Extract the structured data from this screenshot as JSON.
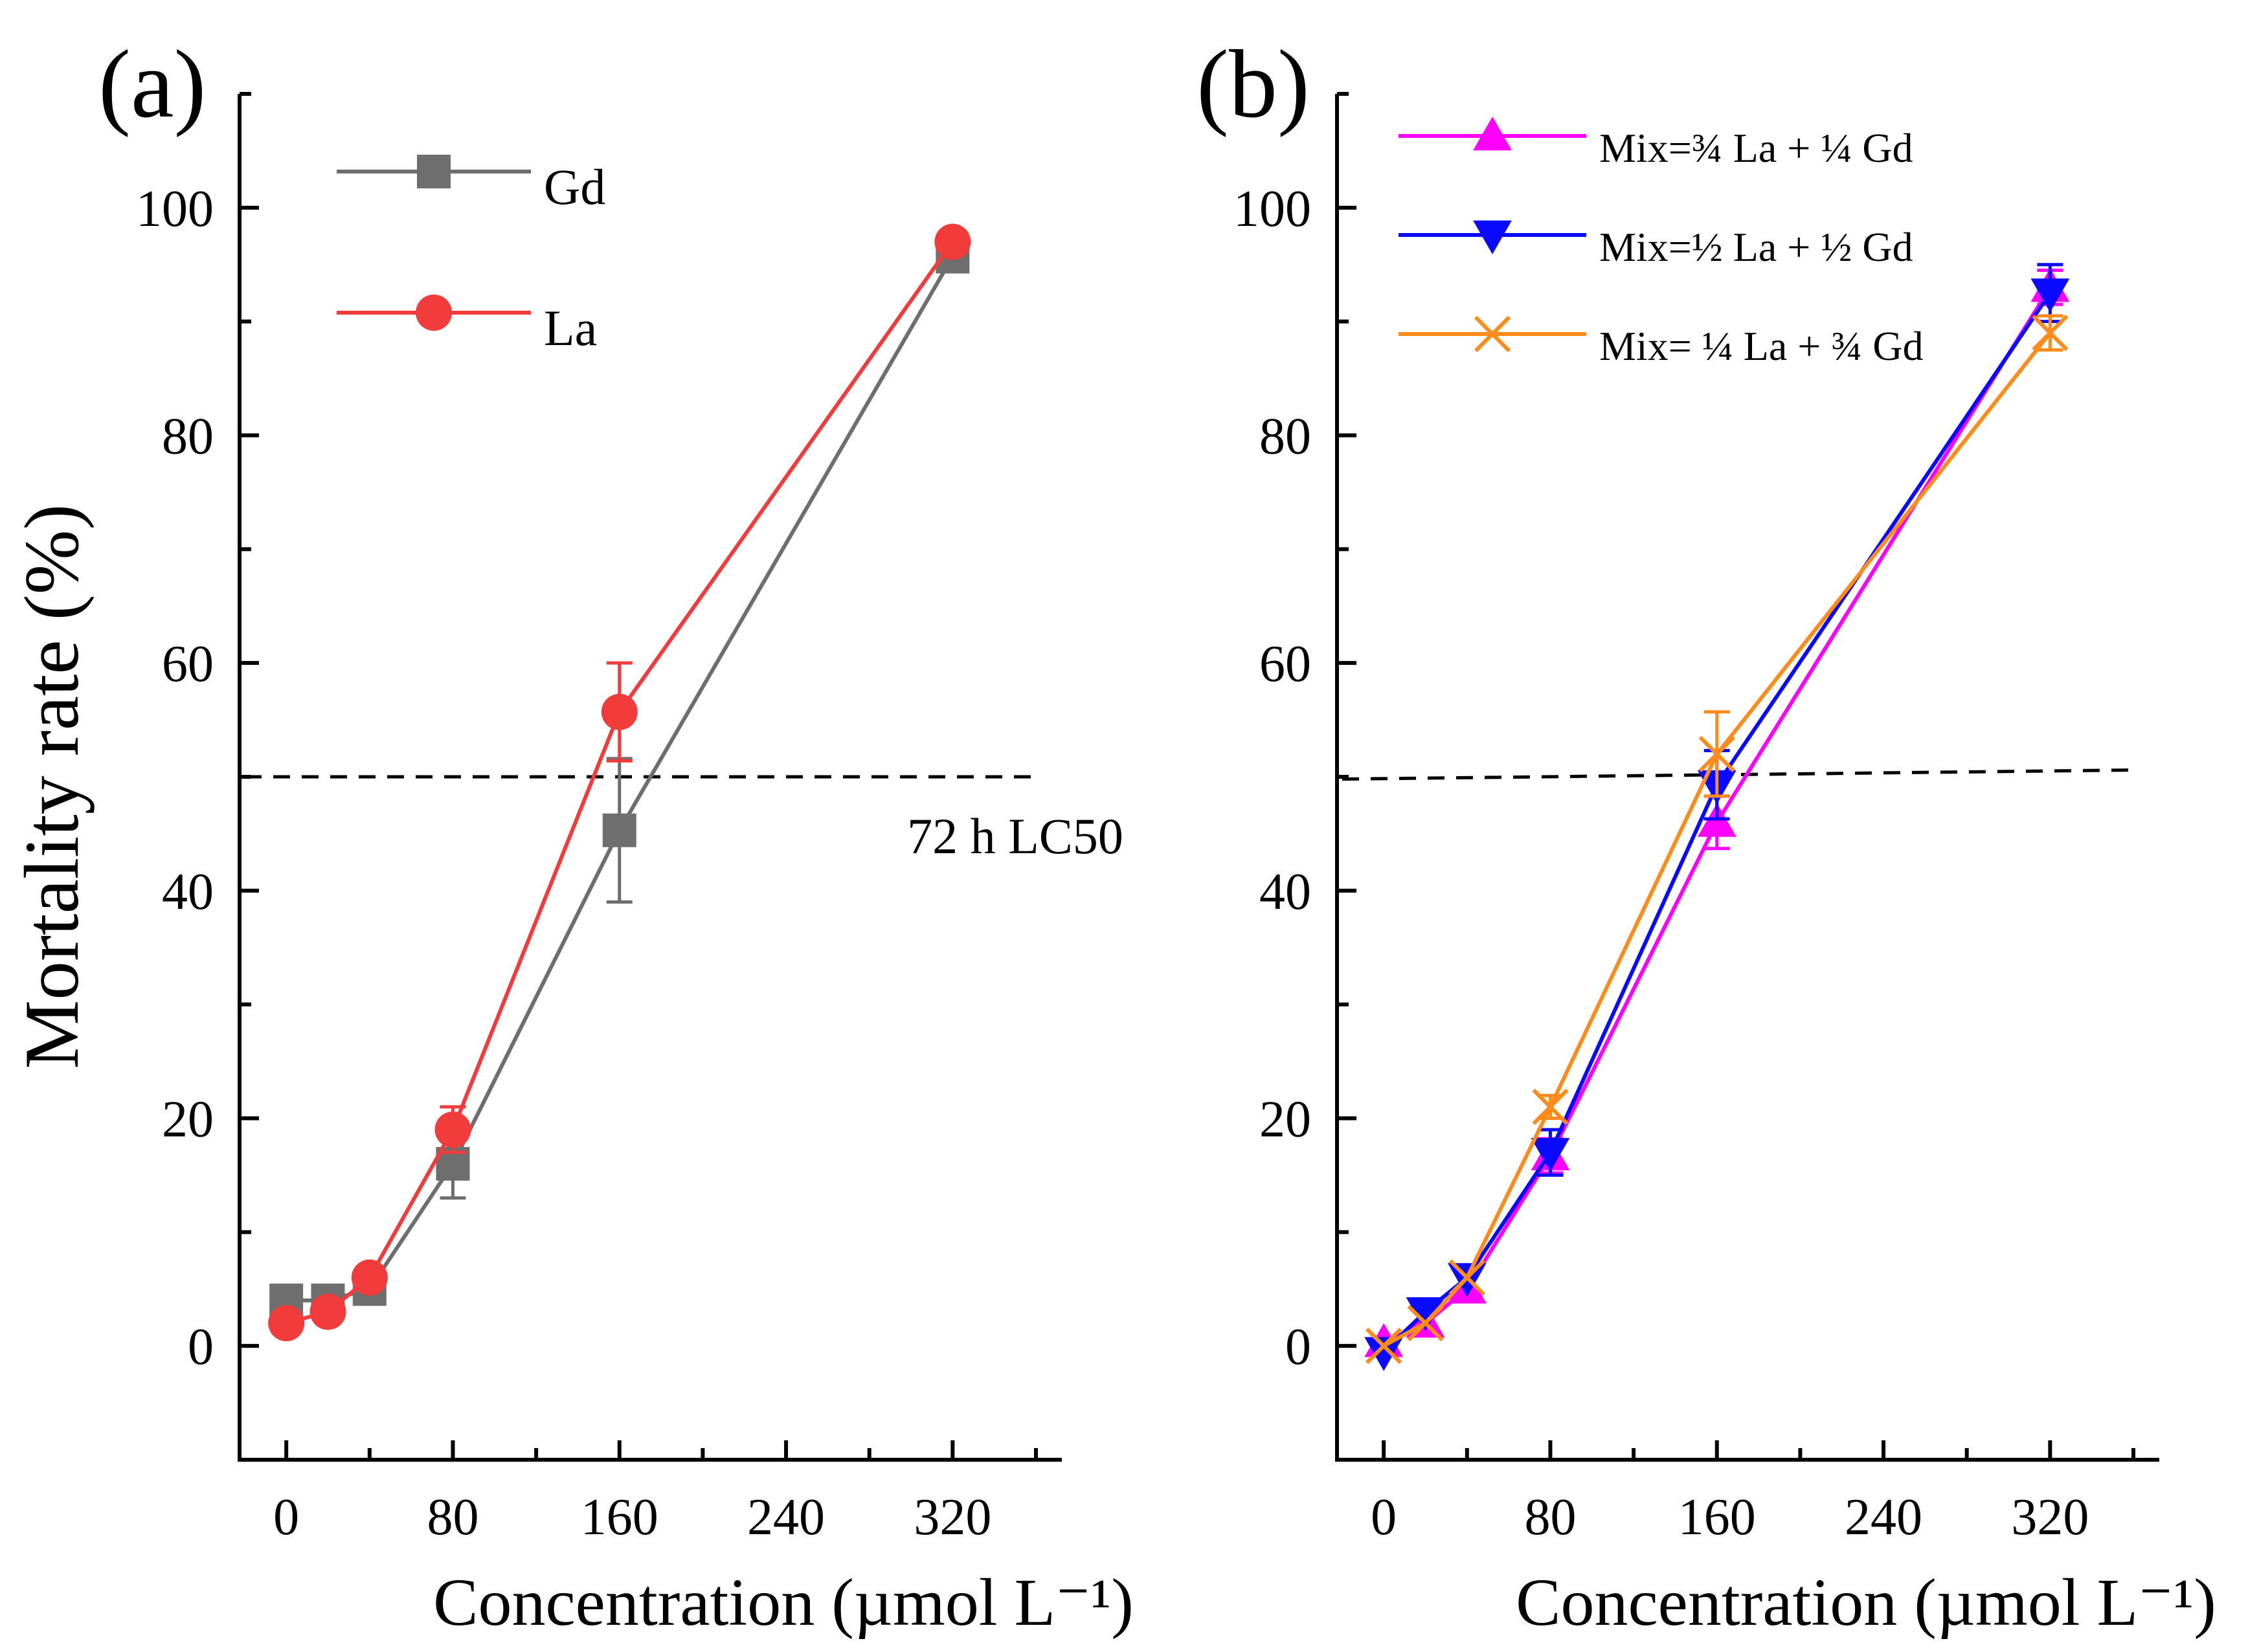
{
  "chart_data": [
    {
      "type": "line",
      "panel_label": "(a)",
      "xlabel": "Concentration (µmol L⁻¹)",
      "ylabel": "Mortality rate (%)",
      "xlim": [
        -10,
        360
      ],
      "ylim": [
        -10,
        110
      ],
      "xticks": [
        "0",
        "80",
        "160",
        "240",
        "320"
      ],
      "yticks": [
        "0",
        "20",
        "40",
        "60",
        "80",
        "100"
      ],
      "reference_line": {
        "y": 50,
        "style": "dashed",
        "label": "72 h LC50"
      },
      "series": [
        {
          "name": "Gd",
          "color": "#6e6e6e",
          "marker": "square",
          "x": [
            0,
            20,
            40,
            80,
            160,
            320
          ],
          "values": [
            4.0,
            4.0,
            5.0,
            16.0,
            45.3,
            95.7
          ],
          "errors": [
            0,
            0,
            0,
            3.0,
            6.3,
            0
          ]
        },
        {
          "name": "La",
          "color": "#f23b3b",
          "marker": "circle",
          "x": [
            0,
            20,
            40,
            80,
            160,
            320
          ],
          "values": [
            2.0,
            3.0,
            6.0,
            19.0,
            55.7,
            97.0
          ],
          "errors": [
            0,
            0,
            0,
            2.0,
            4.3,
            0
          ]
        }
      ]
    },
    {
      "type": "line",
      "panel_label": "(b)",
      "xlabel": "Concentration (µmol L⁻¹)",
      "ylabel": "",
      "xlim": [
        -10,
        360
      ],
      "ylim": [
        -10,
        110
      ],
      "xticks": [
        "0",
        "80",
        "160",
        "240",
        "320"
      ],
      "yticks": [
        "0",
        "20",
        "40",
        "60",
        "80",
        "100"
      ],
      "reference_line": {
        "y": [
          49.8,
          50.6
        ],
        "style": "dashed",
        "label": ""
      },
      "series": [
        {
          "name": "Mix=¾ La + ¼ Gd",
          "color": "#ff00ff",
          "marker": "triangle-up",
          "x": [
            0,
            20,
            40,
            80,
            160,
            320
          ],
          "values": [
            0.3,
            2.0,
            5.0,
            16.7,
            46.0,
            93.0
          ],
          "errors": [
            0,
            0,
            0,
            1.5,
            2.3,
            1.5
          ]
        },
        {
          "name": "Mix=½ La + ½ Gd",
          "color": "#0a0aff",
          "marker": "triangle-down",
          "x": [
            0,
            20,
            40,
            80,
            160,
            320
          ],
          "values": [
            -0.5,
            3.0,
            6.0,
            17.0,
            49.3,
            92.5
          ],
          "errors": [
            0,
            0,
            0,
            2.0,
            3.0,
            2.5
          ]
        },
        {
          "name": "Mix= ¼ La + ¾ Gd",
          "color": "#ff8c1a",
          "marker": "x",
          "x": [
            0,
            20,
            40,
            80,
            160,
            320
          ],
          "values": [
            0.0,
            2.0,
            6.0,
            21.0,
            52.0,
            89.0
          ],
          "errors": [
            0,
            0,
            0,
            1.0,
            3.7,
            1.5
          ]
        }
      ]
    }
  ]
}
